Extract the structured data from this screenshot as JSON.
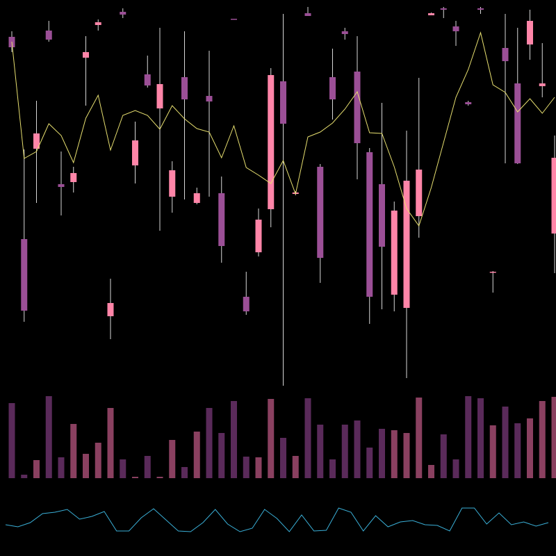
{
  "chart_data": {
    "type": "candlestick",
    "ylim": [
      0,
      560
    ],
    "up_color": "#ff85a8",
    "down_color": "#9b4f96",
    "wick_color": "#d8d8d8",
    "open": [
      507,
      216,
      346,
      516,
      295,
      298,
      477,
      524,
      105,
      543,
      322,
      453,
      404,
      277,
      449,
      268,
      422,
      282,
      533,
      133,
      197,
      259,
      443,
      281,
      541,
      320,
      449,
      515,
      457,
      341,
      295,
      136,
      117,
      249,
      538,
      548,
      522,
      413,
      548,
      168,
      491,
      440,
      496,
      436,
      224
    ],
    "high": [
      515,
      345,
      415,
      530,
      342,
      320,
      508,
      532,
      159,
      548,
      385,
      480,
      520,
      328,
      515,
      290,
      487,
      306,
      533,
      169,
      260,
      462,
      540,
      285,
      550,
      324,
      490,
      520,
      508,
      347,
      412,
      270,
      372,
      448,
      542,
      550,
      530,
      415,
      550,
      170,
      540,
      520,
      546,
      498,
      365
    ],
    "low": [
      485,
      97,
      268,
      500,
      250,
      283,
      408,
      516,
      72,
      534,
      296,
      434,
      228,
      254,
      273,
      266,
      277,
      182,
      532,
      107,
      191,
      233,
      5,
      279,
      537,
      153,
      388,
      503,
      302,
      94,
      115,
      112,
      16,
      218,
      538,
      534,
      494,
      408,
      540,
      139,
      325,
      324,
      474,
      420,
      167
    ],
    "close": [
      492,
      113,
      368,
      503,
      291,
      311,
      485,
      528,
      124,
      539,
      358,
      437,
      439,
      315,
      417,
      282,
      414,
      206,
      532,
      112,
      244,
      452,
      382,
      283,
      537,
      189,
      417,
      511,
      354,
      133,
      205,
      257,
      300,
      316,
      541,
      546,
      515,
      410,
      546,
      169,
      472,
      325,
      530,
      440,
      333
    ],
    "ma": {
      "color": "#e8e070",
      "values": [
        500,
        332,
        342,
        382,
        365,
        326,
        390,
        423,
        344,
        394,
        401,
        394,
        374,
        408,
        389,
        375,
        370,
        333,
        379,
        319,
        308,
        296,
        329,
        281,
        363,
        370,
        383,
        403,
        428,
        369,
        368,
        320,
        260,
        235,
        290,
        355,
        420,
        460,
        513,
        438,
        427,
        399,
        418,
        397,
        420
      ]
    },
    "volume": {
      "ylim": [
        0,
        140
      ],
      "up_color": "#8a4060",
      "down_color": "#5a2a5a",
      "values": [
        108,
        5,
        26,
        118,
        30,
        78,
        35,
        51,
        101,
        27,
        2,
        32,
        2,
        55,
        16,
        67,
        101,
        65,
        111,
        31,
        30,
        114,
        58,
        32,
        115,
        77,
        27,
        77,
        83,
        44,
        71,
        69,
        65,
        116,
        19,
        63,
        27,
        118,
        115,
        76,
        103,
        79,
        86,
        111,
        117
      ]
    },
    "indicator": {
      "ylim": [
        0,
        80
      ],
      "color": "#3ab0d8",
      "values": [
        25,
        22,
        28,
        41,
        43,
        47,
        33,
        37,
        44,
        16,
        16,
        35,
        48,
        32,
        16,
        15,
        28,
        47,
        26,
        15,
        20,
        47,
        34,
        15,
        39,
        16,
        17,
        49,
        43,
        16,
        38,
        22,
        29,
        31,
        25,
        24,
        16,
        49,
        49,
        26,
        42,
        25,
        29,
        23,
        28
      ]
    }
  }
}
